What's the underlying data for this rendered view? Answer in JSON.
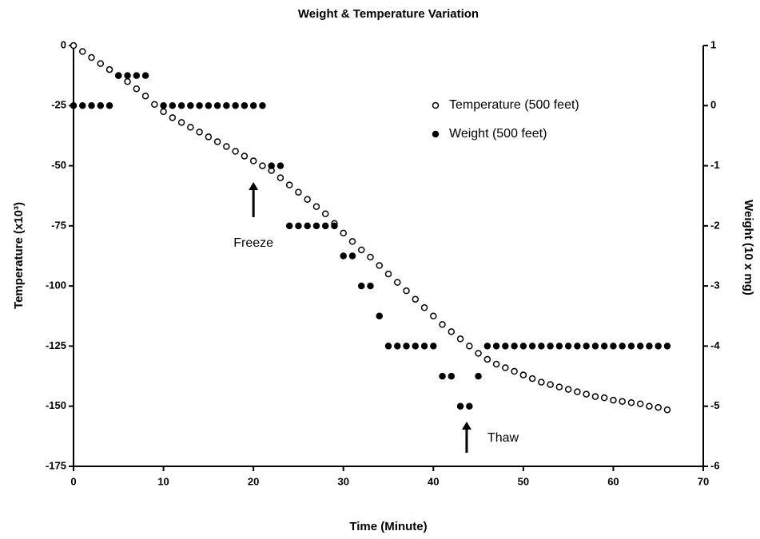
{
  "chart_data": {
    "type": "scatter",
    "title": "Weight & Temperature Variation",
    "x_label": "Time (Minute)",
    "y_label": "Temperature (x10³)",
    "y2_label": "Weight (10 x mg)",
    "xlim": [
      0,
      70
    ],
    "xticks": [
      0,
      10,
      20,
      30,
      40,
      50,
      60,
      70
    ],
    "ylim": [
      -175,
      0
    ],
    "yticks": [
      -175,
      -150,
      -125,
      -100,
      -75,
      -50,
      -25,
      0
    ],
    "y2lim": [
      -6,
      1
    ],
    "y2ticks": [
      -6,
      -5,
      -4,
      -3,
      -2,
      -1,
      0,
      1
    ],
    "legend": "upper right",
    "annotations": [
      {
        "text": "Freeze",
        "x": 20
      },
      {
        "text": "Thaw",
        "x": 43.7
      }
    ],
    "series": [
      {
        "name": "Temperature (500 feet)",
        "color": "#000000",
        "marker": "open",
        "x": [
          0,
          1,
          2,
          3,
          4,
          5,
          6,
          7,
          8,
          9,
          10,
          11,
          12,
          13,
          14,
          15,
          16,
          17,
          18,
          19,
          20,
          21,
          22,
          23,
          24,
          25,
          26,
          27,
          28,
          29,
          30,
          31,
          32,
          33,
          34,
          35,
          36,
          37,
          38,
          39,
          40,
          41,
          42,
          43,
          44,
          45,
          46,
          47,
          48,
          49,
          50,
          51,
          52,
          53,
          54,
          55,
          56,
          57,
          58,
          59,
          60,
          61,
          62,
          63,
          64,
          65,
          66
        ],
        "values": [
          0,
          -2.5,
          -5,
          -7.5,
          -10,
          -12.5,
          -15,
          -18,
          -21,
          -24.5,
          -27.5,
          -30,
          -32,
          -34,
          -36,
          -38,
          -40,
          -42,
          -44,
          -46,
          -48,
          -50,
          -52,
          -55,
          -58,
          -61,
          -64,
          -67,
          -70,
          -74,
          -78,
          -81.5,
          -85,
          -88,
          -91.5,
          -95,
          -98.5,
          -102,
          -105.5,
          -109,
          -112.5,
          -116,
          -119,
          -122,
          -125,
          -128,
          -130.5,
          -132.5,
          -134,
          -135.5,
          -137,
          -138.5,
          -140,
          -141,
          -142,
          -143,
          -144,
          -145,
          -146,
          -146.5,
          -147.5,
          -148,
          -148.5,
          -149,
          -150,
          -150.5,
          -151.5
        ]
      },
      {
        "name": "Weight (500 feet)",
        "color": "#000000",
        "marker": "filled",
        "axis": "y2",
        "x": [
          0,
          1,
          2,
          3,
          4,
          5,
          6,
          7,
          8,
          10,
          11,
          12,
          13,
          14,
          15,
          16,
          17,
          18,
          19,
          20,
          21,
          22,
          23,
          24,
          25,
          26,
          27,
          28,
          29,
          30,
          31,
          32,
          33,
          34,
          35,
          36,
          37,
          38,
          39,
          40,
          41,
          42,
          43,
          44,
          45,
          46,
          47,
          48,
          49,
          50,
          51,
          52,
          53,
          54,
          55,
          56,
          57,
          58,
          59,
          60,
          61,
          62,
          63,
          64,
          65,
          66
        ],
        "values": [
          0,
          0,
          0,
          0,
          0,
          0.5,
          0.5,
          0.5,
          0.5,
          0,
          0,
          0,
          0,
          0,
          0,
          0,
          0,
          0,
          0,
          0,
          0,
          -1,
          -1,
          -2,
          -2,
          -2,
          -2,
          -2,
          -2,
          -2.5,
          -2.5,
          -3,
          -3,
          -3.5,
          -4,
          -4,
          -4,
          -4,
          -4,
          -4,
          -4.5,
          -4.5,
          -5,
          -5,
          -4.5,
          -4,
          -4,
          -4,
          -4,
          -4,
          -4,
          -4,
          -4,
          -4,
          -4,
          -4,
          -4,
          -4,
          -4,
          -4,
          -4,
          -4,
          -4,
          -4,
          -4,
          -4
        ]
      }
    ]
  }
}
